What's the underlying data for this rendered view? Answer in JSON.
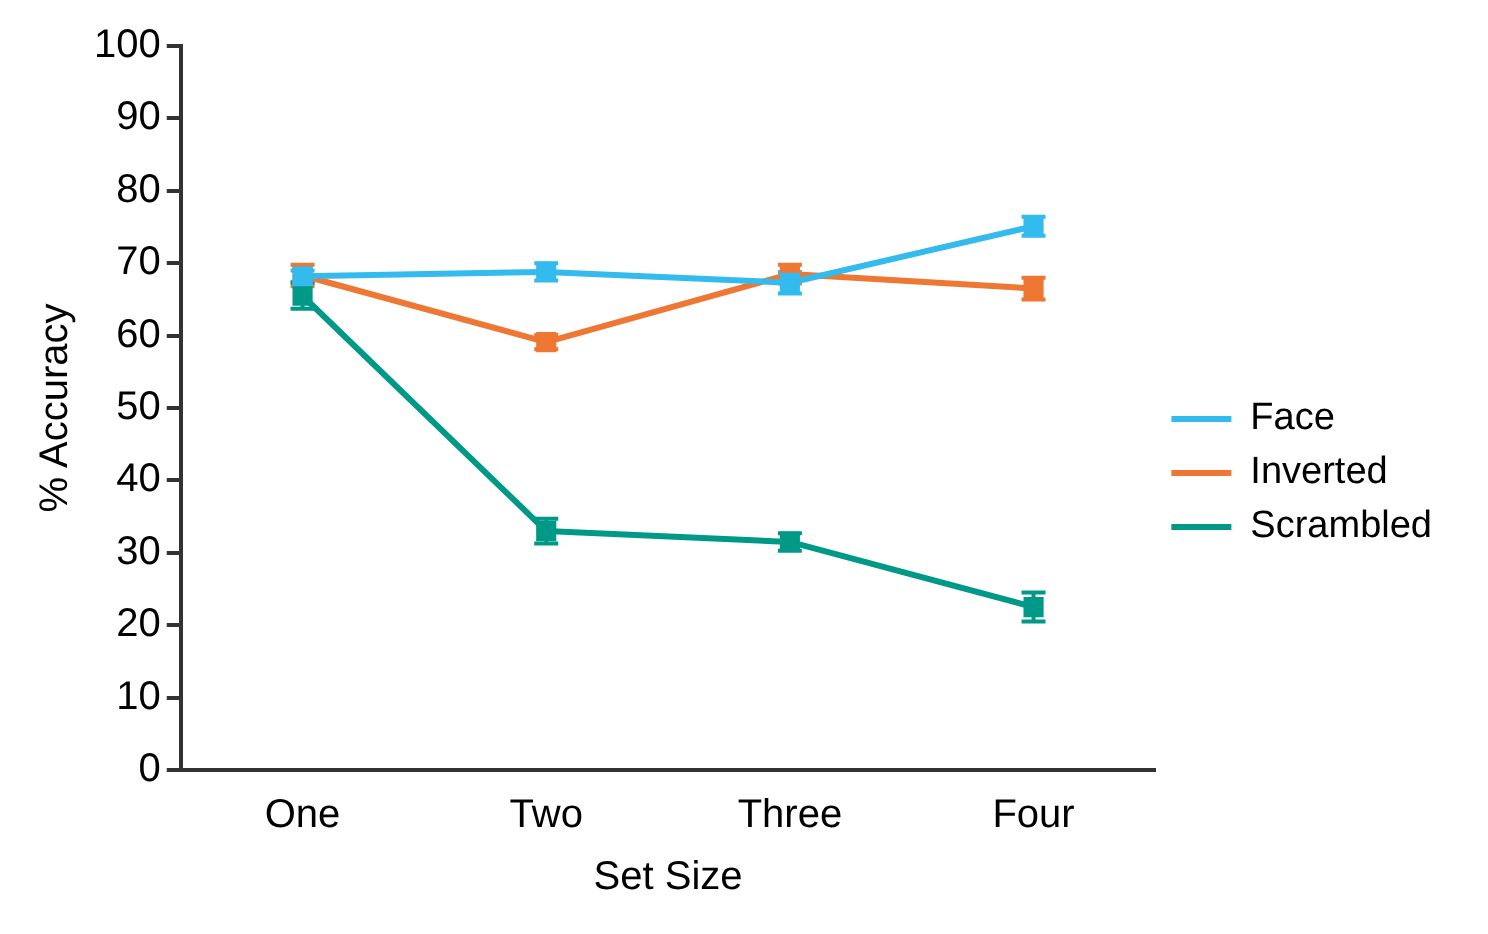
{
  "chart_data": {
    "type": "line",
    "xlabel": "Set Size",
    "ylabel": "% Accuracy",
    "categories": [
      "One",
      "Two",
      "Three",
      "Four"
    ],
    "series": [
      {
        "name": "Face",
        "color": "#33bbee",
        "values": [
          68.2,
          68.8,
          67.3,
          75.1
        ],
        "errors": [
          0.8,
          1.2,
          1.5,
          1.3
        ]
      },
      {
        "name": "Inverted",
        "color": "#ee7733",
        "values": [
          68.3,
          59.1,
          68.5,
          66.5
        ],
        "errors": [
          1.5,
          1.0,
          1.3,
          1.5
        ]
      },
      {
        "name": "Scrambled",
        "color": "#009988",
        "values": [
          65.5,
          33,
          31.5,
          22.5
        ],
        "errors": [
          1.8,
          1.7,
          1.2,
          2.0
        ]
      }
    ],
    "ylim": [
      0,
      100
    ],
    "yticks": [
      0,
      10,
      20,
      30,
      40,
      50,
      60,
      70,
      80,
      90,
      100
    ],
    "grid": false,
    "legend": "right",
    "marker": "square",
    "line_style": "solid"
  }
}
